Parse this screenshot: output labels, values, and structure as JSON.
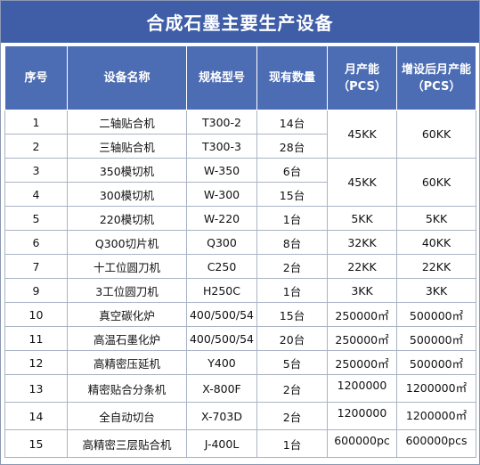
{
  "title": "合成石墨主要生产设备",
  "headers": [
    "序号",
    "设备名称",
    "规格型号",
    "现有数量",
    "月产能\n（PCS）",
    "增设后月产能\n（PCS）"
  ],
  "rows": [
    {
      "no": "1",
      "name": "二轴贴合机",
      "model": "T300-2",
      "qty": "14台",
      "monthly": "45KK",
      "after": "60KK",
      "span": 2
    },
    {
      "no": "2",
      "name": "三轴贴合机",
      "model": "T300-3",
      "qty": "28台",
      "monthly": null,
      "after": null
    },
    {
      "no": "3",
      "name": "350模切机",
      "model": "W-350",
      "qty": "6台",
      "monthly": "45KK",
      "after": "60KK",
      "span": 2
    },
    {
      "no": "4",
      "name": "300模切机",
      "model": "W-300",
      "qty": "15台",
      "monthly": null,
      "after": null
    },
    {
      "no": "5",
      "name": "220模切机",
      "model": "W-220",
      "qty": "1台",
      "monthly": "5KK",
      "after": "5KK",
      "span": 1
    },
    {
      "no": "6",
      "name": "Q300切片机",
      "model": "Q300",
      "qty": "8台",
      "monthly": "32KK",
      "after": "40KK",
      "span": 1
    },
    {
      "no": "7",
      "name": "十工位圆刀机",
      "model": "C250",
      "qty": "2台",
      "monthly": "22KK",
      "after": "22KK",
      "span": 1
    },
    {
      "no": "9",
      "name": "3工位圆刀机",
      "model": "H250C",
      "qty": "1台",
      "monthly": "3KK",
      "after": "3KK",
      "span": 1
    },
    {
      "no": "10",
      "name": "真空碳化炉",
      "model": "400/500/54",
      "qty": "15台",
      "monthly": "250000㎡",
      "after": "500000㎡",
      "span": 1
    },
    {
      "no": "11",
      "name": "高温石墨化炉",
      "model": "400/500/54",
      "qty": "20台",
      "monthly": "250000㎡",
      "after": "500000㎡",
      "span": 1
    },
    {
      "no": "12",
      "name": "高精密压延机",
      "model": "Y400",
      "qty": "5台",
      "monthly": "250000㎡",
      "after": "500000㎡",
      "span": 1
    },
    {
      "no": "13",
      "name": "精密贴合分条机",
      "model": "X-800F",
      "qty": "2台",
      "monthly": "1200000",
      "after": "1200000㎡",
      "span": 1,
      "top": true
    },
    {
      "no": "14",
      "name": "全自动切台",
      "model": "X-703D",
      "qty": "2台",
      "monthly": "1200000",
      "after": "1200000㎡",
      "span": 1,
      "top": true
    },
    {
      "no": "15",
      "name": "高精密三层贴合机",
      "model": "J-400L",
      "qty": "1台",
      "monthly": "600000pc",
      "after": "600000pcs",
      "span": 1,
      "top": true
    }
  ]
}
